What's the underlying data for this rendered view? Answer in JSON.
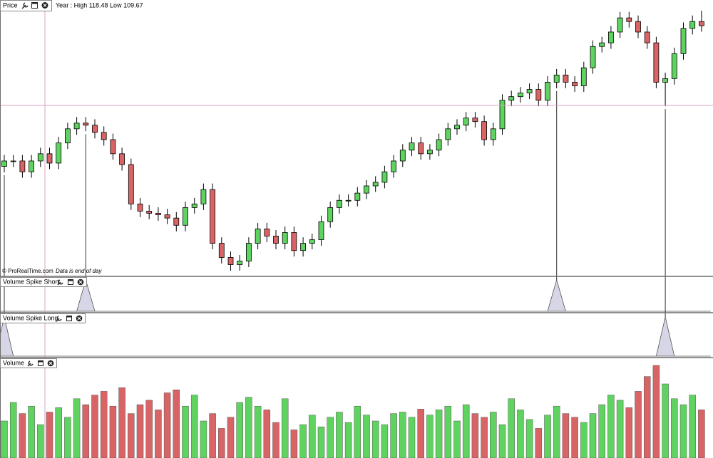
{
  "price_panel": {
    "type": "candlestick",
    "title": "Price",
    "info": "Year : High 118.48 Low 109.67",
    "footer_brand": "© ProRealTime.com",
    "footer_note": "Data is end of day",
    "up_color": "#5fd35f",
    "down_color": "#d96466",
    "open": [
      113.3,
      113.48,
      113.48,
      113.12,
      113.48,
      113.72,
      113.41,
      114.08,
      114.55,
      114.74,
      114.67,
      114.43,
      114.19,
      113.72,
      113.36,
      112.05,
      111.81,
      111.74,
      111.69,
      111.58,
      111.34,
      111.93,
      112.05,
      112.53,
      110.74,
      110.27,
      110.03,
      110.15,
      110.74,
      111.22,
      110.98,
      110.74,
      111.1,
      110.5,
      110.74,
      110.86,
      111.46,
      111.93,
      112.17,
      112.17,
      112.41,
      112.65,
      112.77,
      113.12,
      113.48,
      113.84,
      114.08,
      113.72,
      113.84,
      114.19,
      114.55,
      114.67,
      114.91,
      114.79,
      114.19,
      114.55,
      115.5,
      115.62,
      115.74,
      115.86,
      115.5,
      116.1,
      116.34,
      116.1,
      115.98,
      116.58,
      117.29,
      117.41,
      117.77,
      118.24,
      118.12,
      117.77,
      117.41,
      116.1,
      116.22,
      117.05,
      117.89,
      118.12
    ],
    "high": [
      113.68,
      113.68,
      113.68,
      113.68,
      113.92,
      113.92,
      114.28,
      114.75,
      114.94,
      114.94,
      114.87,
      114.63,
      114.39,
      113.92,
      113.56,
      112.25,
      112.01,
      111.94,
      111.89,
      111.78,
      112.13,
      112.25,
      112.73,
      112.73,
      110.94,
      110.47,
      110.35,
      110.94,
      111.42,
      111.42,
      111.18,
      111.3,
      111.3,
      110.94,
      111.06,
      111.66,
      112.13,
      112.37,
      112.37,
      112.61,
      112.85,
      112.97,
      113.32,
      113.68,
      114.04,
      114.28,
      114.28,
      114.04,
      114.39,
      114.75,
      114.87,
      115.11,
      115.11,
      114.99,
      114.75,
      115.7,
      115.82,
      115.94,
      116.06,
      116.06,
      116.3,
      116.54,
      116.54,
      116.3,
      116.78,
      117.49,
      117.61,
      117.97,
      118.44,
      118.44,
      118.32,
      117.97,
      117.61,
      116.42,
      117.25,
      118.09,
      118.32,
      118.48
    ],
    "low": [
      113.1,
      113.28,
      112.92,
      112.92,
      113.28,
      113.21,
      113.21,
      113.88,
      114.35,
      114.47,
      114.23,
      113.99,
      113.52,
      113.16,
      111.85,
      111.61,
      111.54,
      111.49,
      111.38,
      111.14,
      111.14,
      111.73,
      111.85,
      110.54,
      110.07,
      109.83,
      109.83,
      109.95,
      110.54,
      110.78,
      110.54,
      110.54,
      110.3,
      110.3,
      110.54,
      110.66,
      111.26,
      111.73,
      111.97,
      111.97,
      112.21,
      112.45,
      112.57,
      112.92,
      113.28,
      113.64,
      113.52,
      113.52,
      113.64,
      113.99,
      114.35,
      114.47,
      114.59,
      113.99,
      113.99,
      114.35,
      115.3,
      115.42,
      115.54,
      115.3,
      115.3,
      115.9,
      115.9,
      115.78,
      115.78,
      116.38,
      117.09,
      117.21,
      117.57,
      117.92,
      117.57,
      117.21,
      115.9,
      115.3,
      116.02,
      116.85,
      117.69,
      117.78
    ],
    "close": [
      113.48,
      113.48,
      113.12,
      113.48,
      113.72,
      113.41,
      114.08,
      114.55,
      114.74,
      114.67,
      114.43,
      114.19,
      113.72,
      113.36,
      112.05,
      111.81,
      111.74,
      111.69,
      111.58,
      111.34,
      111.93,
      112.05,
      112.53,
      110.74,
      110.27,
      110.03,
      110.15,
      110.74,
      111.22,
      110.98,
      110.74,
      111.1,
      110.5,
      110.74,
      110.86,
      111.46,
      111.93,
      112.17,
      112.17,
      112.41,
      112.65,
      112.77,
      113.12,
      113.48,
      113.84,
      114.08,
      113.72,
      113.84,
      114.19,
      114.55,
      114.67,
      114.91,
      114.79,
      114.19,
      114.55,
      115.5,
      115.62,
      115.74,
      115.86,
      115.5,
      116.1,
      116.34,
      116.1,
      115.98,
      116.58,
      117.29,
      117.41,
      117.77,
      118.24,
      118.12,
      117.77,
      117.41,
      116.1,
      116.22,
      117.05,
      117.89,
      118.12,
      117.98
    ]
  },
  "spike_short_panel": {
    "type": "line",
    "title": "Volume Spike Short",
    "color": "#d6d6e6",
    "values": [
      0,
      0,
      0,
      0,
      0,
      0,
      0,
      0,
      0,
      1,
      0,
      0,
      0,
      0,
      0,
      0,
      0,
      0,
      0,
      0,
      0,
      0,
      0,
      0,
      0,
      0,
      0,
      0,
      0,
      0,
      0,
      0,
      0,
      0,
      0,
      0,
      0,
      0,
      0,
      0,
      0,
      0,
      0,
      0,
      0,
      0,
      0,
      0,
      0,
      0,
      0,
      0,
      0,
      0,
      0,
      0,
      0,
      0,
      0,
      0,
      0,
      1,
      0,
      0,
      0,
      0,
      0,
      0,
      0,
      0,
      0,
      0,
      0,
      0,
      0,
      0,
      0,
      0
    ]
  },
  "spike_long_panel": {
    "type": "line",
    "title": "Volume Spike Long",
    "color": "#d6d6e6",
    "values": [
      1,
      0,
      0,
      0,
      0,
      0,
      0,
      0,
      0,
      0,
      0,
      0,
      0,
      0,
      0,
      0,
      0,
      0,
      0,
      0,
      0,
      0,
      0,
      0,
      0,
      0,
      0,
      0,
      0,
      0,
      0,
      0,
      0,
      0,
      0,
      0,
      0,
      0,
      0,
      0,
      0,
      0,
      0,
      0,
      0,
      0,
      0,
      0,
      0,
      0,
      0,
      0,
      0,
      0,
      0,
      0,
      0,
      0,
      0,
      0,
      0,
      0,
      0,
      0,
      0,
      0,
      0,
      0,
      0,
      0,
      0,
      0,
      0,
      1,
      0,
      0,
      0,
      0
    ]
  },
  "volume_panel": {
    "type": "bar",
    "title": "Volume",
    "values": [
      50,
      75,
      60,
      70,
      45,
      62,
      68,
      55,
      80,
      72,
      85,
      90,
      70,
      95,
      60,
      72,
      78,
      65,
      88,
      92,
      70,
      85,
      50,
      60,
      40,
      55,
      75,
      82,
      70,
      65,
      48,
      80,
      38,
      45,
      58,
      42,
      55,
      62,
      48,
      70,
      58,
      50,
      45,
      60,
      62,
      55,
      66,
      58,
      65,
      70,
      50,
      72,
      60,
      55,
      62,
      45,
      80,
      65,
      52,
      40,
      58,
      70,
      60,
      55,
      48,
      60,
      72,
      85,
      78,
      68,
      90,
      110,
      125,
      100,
      80,
      72,
      85,
      65
    ]
  }
}
